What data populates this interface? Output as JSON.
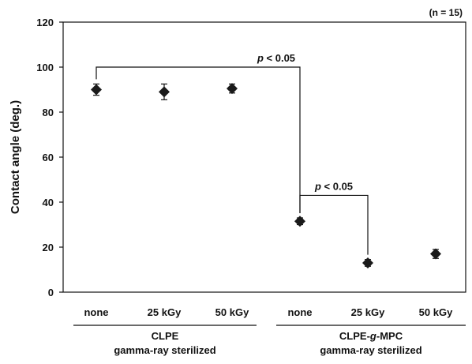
{
  "chart_data": {
    "type": "scatter",
    "ylabel": "Contact angle (deg.)",
    "ylim": [
      0,
      120
    ],
    "yticks": [
      "0",
      "20",
      "40",
      "60",
      "80",
      "100",
      "120"
    ],
    "ytick_values": [
      0,
      20,
      40,
      60,
      80,
      100,
      120
    ],
    "note": "(n = 15)",
    "categories": [
      "none",
      "25 kGy",
      "50 kGy",
      "none",
      "25 kGy",
      "50 kGy"
    ],
    "groups": [
      {
        "line1": "CLPE",
        "line2": "gamma-ray sterilized",
        "indices": [
          0,
          1,
          2
        ]
      },
      {
        "line1_parts": [
          "CLPE-",
          "g",
          "-MPC"
        ],
        "line2": "gamma-ray sterilized",
        "indices": [
          3,
          4,
          5
        ]
      }
    ],
    "values": [
      90,
      89,
      90.5,
      31.5,
      13,
      17
    ],
    "errors": [
      2.5,
      3.5,
      2,
      1.5,
      1.5,
      2
    ],
    "significance": [
      {
        "from": 0,
        "to": 3,
        "level": 100,
        "label_italic": "p",
        "label_rest": " < 0.05"
      },
      {
        "from": 3,
        "to": 4,
        "level": 43,
        "label_italic": "p",
        "label_rest": " < 0.05"
      }
    ],
    "colors": {
      "marker": "#1a1a1a",
      "axis": "#111111"
    }
  }
}
